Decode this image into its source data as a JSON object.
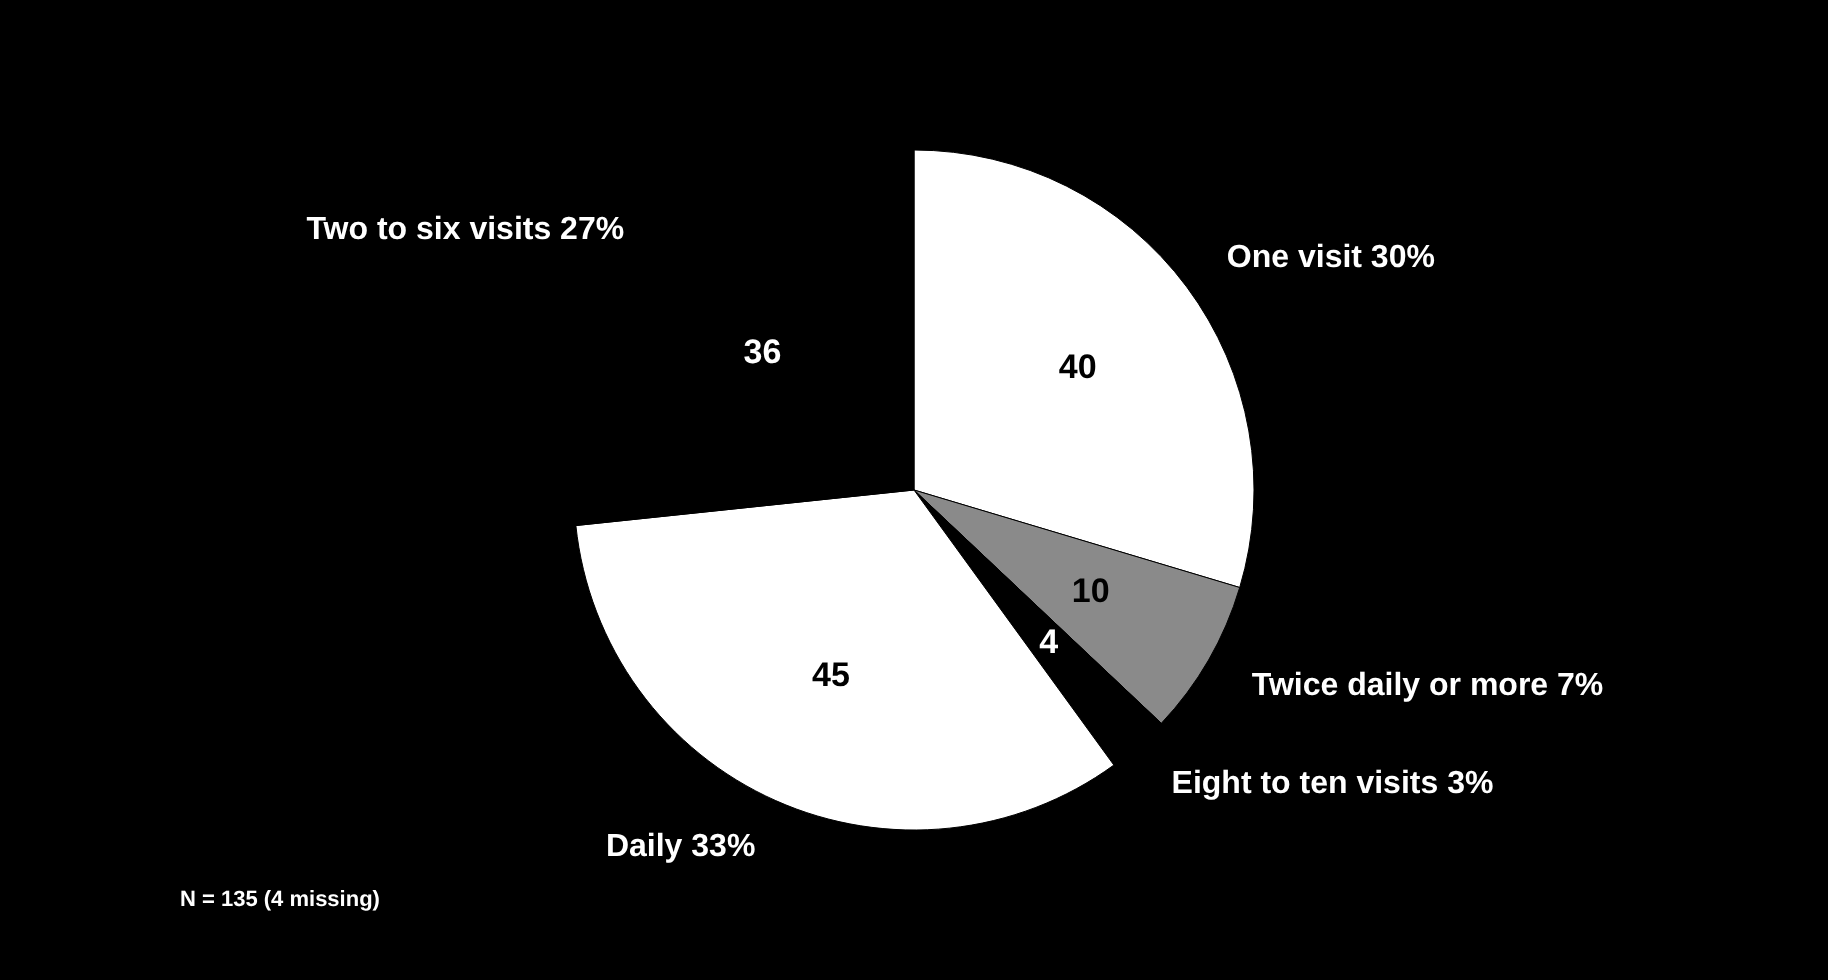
{
  "chart_data": {
    "type": "pie",
    "categories": [
      "One visit 30%",
      "Twice daily or more 7%",
      "Eight to ten visits 3%",
      "Daily 33%",
      "Two to six visits 27%"
    ],
    "values": [
      40,
      10,
      4,
      45,
      36
    ],
    "colors": [
      "#ffffff",
      "#8a8a8a",
      "#000000",
      "#ffffff",
      "#000000"
    ],
    "data_labels": true,
    "annotations": [
      "N = 135 (4 missing)"
    ]
  }
}
